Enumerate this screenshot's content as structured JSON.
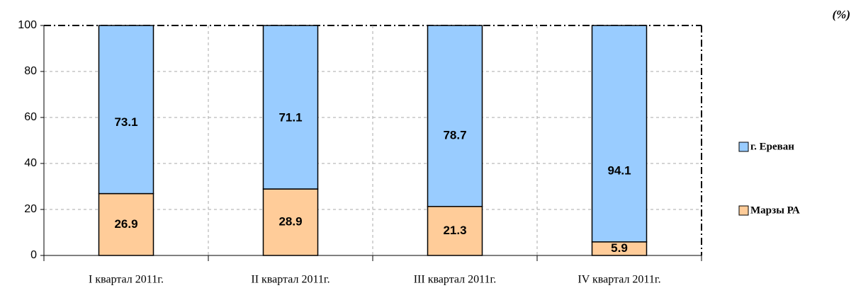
{
  "chart_data": {
    "type": "bar",
    "stacked": true,
    "annotation": "(%)",
    "categories": [
      "I квартал 2011г.",
      "II квартал 2011г.",
      "III квартал 2011г.",
      "IV  квартал 2011г."
    ],
    "series": [
      {
        "name": "Марзы РА",
        "color": "#ffcc99",
        "values": [
          26.9,
          28.9,
          21.3,
          5.9
        ]
      },
      {
        "name": "г. Ереван",
        "color": "#99ccff",
        "values": [
          73.1,
          71.1,
          78.7,
          94.1
        ]
      }
    ],
    "ylim": [
      0,
      100
    ],
    "yticks": [
      0,
      20,
      40,
      60,
      80,
      100
    ],
    "grid": true,
    "legend": "right"
  }
}
